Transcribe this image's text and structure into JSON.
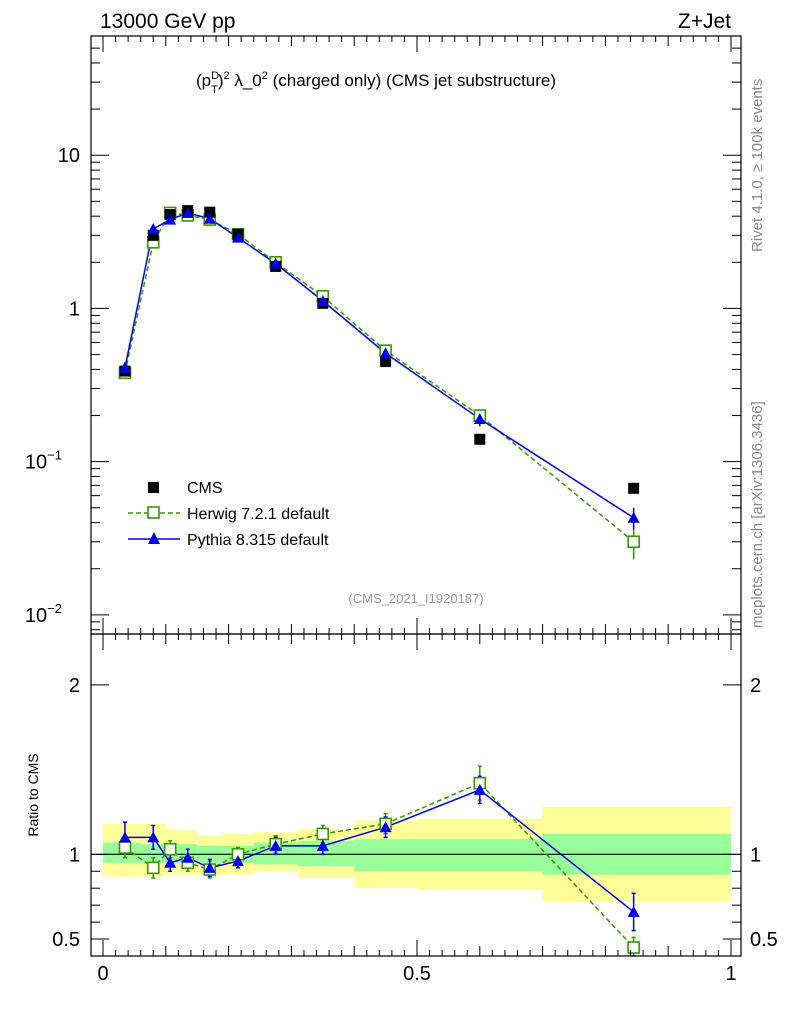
{
  "header": {
    "left": "13000 GeV pp",
    "right": "Z+Jet"
  },
  "side_labels": {
    "top": "Rivet 4.1.0, ≥ 100k events",
    "bottom": "mcplots.cern.ch [arXiv:1306.3436]"
  },
  "colors": {
    "cms": "#000000",
    "herwig": "#339900",
    "pythia": "#0000ee",
    "band_outer": "#ffff99",
    "band_inner": "#99ff99"
  },
  "chart_data": [
    {
      "type": "scatter",
      "title": "(p_T^D)^2 λ_0^2 (charged only) (CMS jet substructure)",
      "title_parts": {
        "base": "(p",
        "sup1": "D",
        "sub1": "T",
        "mid": ")",
        "sup2": "2",
        "rest": " λ_0",
        "sup3": "2",
        "tail": " (charged only) (CMS jet substructure)"
      },
      "watermark": "(CMS_2021_I1920187)",
      "yscale": "log",
      "xlim": [
        0,
        1
      ],
      "ylim": [
        0.0075,
        60
      ],
      "yticks": [
        {
          "value": 10,
          "label": "10"
        },
        {
          "value": 1,
          "label": "1"
        },
        {
          "value": 0.1,
          "label": "10",
          "exp": "−1"
        },
        {
          "value": 0.01,
          "label": "10",
          "exp": "−2"
        }
      ],
      "x": [
        0.035,
        0.08,
        0.107,
        0.135,
        0.17,
        0.215,
        0.275,
        0.35,
        0.45,
        0.6,
        0.845
      ],
      "series": [
        {
          "name": "CMS",
          "values": [
            0.39,
            3.0,
            4.1,
            4.35,
            4.25,
            3.05,
            1.88,
            1.08,
            0.45,
            0.14,
            0.067
          ]
        },
        {
          "name": "Herwig 7.2.1 default",
          "values": [
            0.38,
            2.7,
            4.2,
            4.05,
            3.8,
            3.05,
            2.0,
            1.2,
            0.53,
            0.2,
            0.03
          ],
          "errors": [
            0.03,
            0.2,
            0.2,
            0.2,
            0.2,
            0.15,
            0.1,
            0.07,
            0.04,
            0.02,
            0.007
          ]
        },
        {
          "name": "Pythia 8.315 default",
          "values": [
            0.41,
            3.3,
            3.8,
            4.2,
            3.85,
            2.9,
            1.96,
            1.12,
            0.51,
            0.19,
            0.043
          ],
          "errors": [
            0.03,
            0.2,
            0.2,
            0.2,
            0.2,
            0.15,
            0.1,
            0.07,
            0.04,
            0.02,
            0.007
          ]
        }
      ],
      "legend": {
        "position": "bottom-left",
        "entries": [
          "CMS",
          "Herwig 7.2.1 default",
          "Pythia 8.315 default"
        ]
      }
    },
    {
      "type": "scatter",
      "ylabel": "Ratio to CMS",
      "xlim": [
        0,
        1
      ],
      "ylim": [
        0.4,
        2.3
      ],
      "yticks": [
        {
          "value": 2,
          "label": "2"
        },
        {
          "value": 1,
          "label": "1"
        },
        {
          "value": 0.5,
          "label": "0.5"
        }
      ],
      "xticks": [
        {
          "value": 0,
          "label": "0"
        },
        {
          "value": 0.5,
          "label": "0.5"
        },
        {
          "value": 1,
          "label": "1"
        }
      ],
      "bands": [
        {
          "x0": 0.0,
          "x1": 0.06,
          "outer": [
            0.87,
            1.18
          ],
          "inner": [
            0.95,
            1.07
          ]
        },
        {
          "x0": 0.06,
          "x1": 0.1,
          "outer": [
            0.87,
            1.18
          ],
          "inner": [
            0.95,
            1.06
          ]
        },
        {
          "x0": 0.1,
          "x1": 0.12,
          "outer": [
            0.88,
            1.15
          ],
          "inner": [
            0.95,
            1.06
          ]
        },
        {
          "x0": 0.12,
          "x1": 0.15,
          "outer": [
            0.88,
            1.14
          ],
          "inner": [
            0.95,
            1.06
          ]
        },
        {
          "x0": 0.15,
          "x1": 0.19,
          "outer": [
            0.88,
            1.11
          ],
          "inner": [
            0.95,
            1.05
          ]
        },
        {
          "x0": 0.19,
          "x1": 0.24,
          "outer": [
            0.88,
            1.12
          ],
          "inner": [
            0.95,
            1.05
          ]
        },
        {
          "x0": 0.24,
          "x1": 0.31,
          "outer": [
            0.9,
            1.13
          ],
          "inner": [
            0.94,
            1.07
          ]
        },
        {
          "x0": 0.31,
          "x1": 0.4,
          "outer": [
            0.86,
            1.15
          ],
          "inner": [
            0.93,
            1.08
          ]
        },
        {
          "x0": 0.4,
          "x1": 0.5,
          "outer": [
            0.8,
            1.2
          ],
          "inner": [
            0.9,
            1.09
          ]
        },
        {
          "x0": 0.5,
          "x1": 0.7,
          "outer": [
            0.79,
            1.21
          ],
          "inner": [
            0.9,
            1.09
          ]
        },
        {
          "x0": 0.7,
          "x1": 1.0,
          "outer": [
            0.72,
            1.28
          ],
          "inner": [
            0.88,
            1.12
          ]
        }
      ],
      "x": [
        0.035,
        0.08,
        0.107,
        0.135,
        0.17,
        0.215,
        0.275,
        0.35,
        0.45,
        0.6,
        0.845
      ],
      "series": [
        {
          "name": "Herwig 7.2.1 default",
          "values": [
            1.04,
            0.92,
            1.03,
            0.95,
            0.91,
            1.0,
            1.06,
            1.12,
            1.18,
            1.42,
            0.45
          ],
          "errors": [
            0.06,
            0.06,
            0.05,
            0.05,
            0.05,
            0.04,
            0.05,
            0.05,
            0.06,
            0.1,
            0.06
          ]
        },
        {
          "name": "Pythia 8.315 default",
          "values": [
            1.1,
            1.1,
            0.95,
            0.98,
            0.92,
            0.96,
            1.05,
            1.05,
            1.16,
            1.38,
            0.66
          ],
          "errors": [
            0.09,
            0.07,
            0.05,
            0.05,
            0.05,
            0.04,
            0.05,
            0.05,
            0.06,
            0.08,
            0.11
          ]
        }
      ]
    }
  ]
}
